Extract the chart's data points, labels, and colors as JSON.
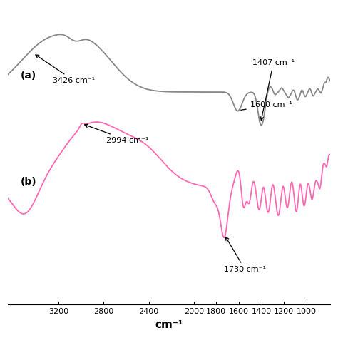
{
  "xlabel": "cm⁻¹",
  "color_a": "#888888",
  "color_b": "#FF69B4",
  "label_a": "(a)",
  "label_b": "(b)",
  "xticks": [
    3200,
    2800,
    2400,
    2000,
    1800,
    1600,
    1400,
    1200,
    1000
  ],
  "xlim_left": 3650,
  "xlim_right": 790,
  "background_color": "#ffffff",
  "linewidth": 1.3
}
